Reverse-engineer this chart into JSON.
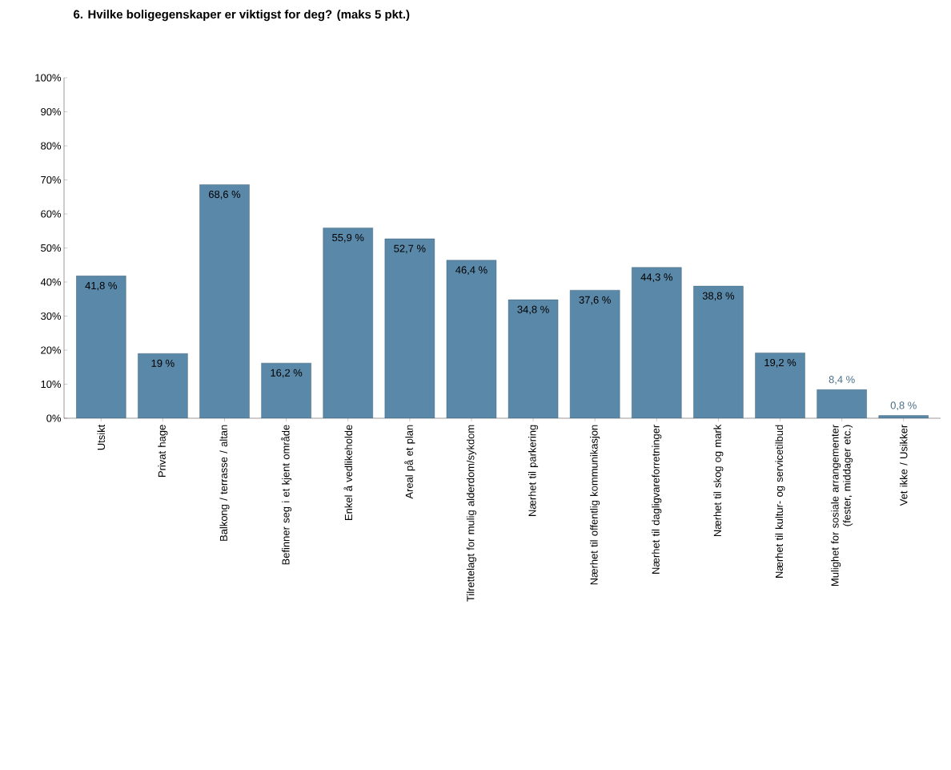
{
  "chart_data": {
    "type": "bar",
    "title": "6. Hvilke boligegenskaper er viktigst for deg? (maks 5 pkt.)",
    "categories": [
      "Utsikt",
      "Privat hage",
      "Balkong / terrasse / altan",
      "Befinner seg i et kjent område",
      "Enkel å vedlikeholde",
      "Areal på et plan",
      "Tilrettelagt for mulig alderdom/sykdom",
      "Nærhet til parkering",
      "Nærhet til offentlig kommunikasjon",
      "Nærhet til dagligvareforretninger",
      "Nærhet til skog og mark",
      "Nærhet til kultur- og servicetilbud",
      "Mulighet for sosiale arrangementer (fester, middager etc.)",
      "Vet ikke / Usikker"
    ],
    "values": [
      41.8,
      19,
      68.6,
      16.2,
      55.9,
      52.7,
      46.4,
      34.8,
      37.6,
      44.3,
      38.8,
      19.2,
      8.4,
      0.8
    ],
    "value_labels": [
      "41,8 %",
      "19 %",
      "68,6 %",
      "16,2 %",
      "55,9 %",
      "52,7 %",
      "46,4 %",
      "34,8 %",
      "37,6 %",
      "44,3 %",
      "38,8 %",
      "19,2 %",
      "8,4 %",
      "0,8 %"
    ],
    "color": "#5a88a8",
    "ylim": [
      0,
      100
    ],
    "yticks": [
      {
        "value": 0,
        "label": "0%"
      },
      {
        "value": 10,
        "label": "10%"
      },
      {
        "value": 20,
        "label": "20%"
      },
      {
        "value": 30,
        "label": "30%"
      },
      {
        "value": 40,
        "label": "40%"
      },
      {
        "value": 50,
        "label": "50%"
      },
      {
        "value": 60,
        "label": "60%"
      },
      {
        "value": 70,
        "label": "70%"
      },
      {
        "value": 80,
        "label": "80%"
      },
      {
        "value": 90,
        "label": "90%"
      },
      {
        "value": 100,
        "label": "100%"
      }
    ]
  }
}
